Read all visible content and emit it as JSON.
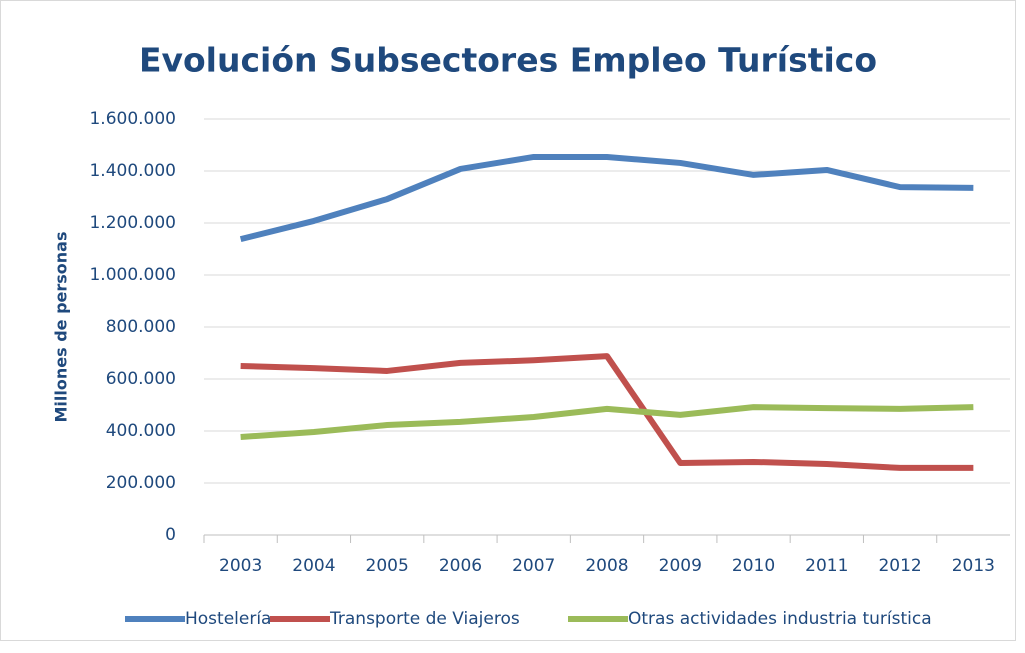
{
  "chart_data": {
    "type": "line",
    "title": "Evolución Subsectores Empleo Turístico",
    "y_label": "Millones de personas",
    "categories": [
      "2003",
      "2004",
      "2005",
      "2006",
      "2007",
      "2008",
      "2009",
      "2010",
      "2011",
      "2012",
      "2013"
    ],
    "series": [
      {
        "name": "Hostelería",
        "color": "#4f81bd",
        "values": [
          1138000,
          1208000,
          1292000,
          1408000,
          1454000,
          1454000,
          1431000,
          1385000,
          1404000,
          1338000,
          1335000
        ]
      },
      {
        "name": "Transporte de Viajeros",
        "color": "#c0504d",
        "values": [
          650000,
          642000,
          631000,
          662000,
          672000,
          688000,
          277000,
          281000,
          273000,
          258000,
          258000
        ]
      },
      {
        "name": "Otras actividades industria turística",
        "color": "#9bbb59",
        "values": [
          377000,
          396000,
          423000,
          435000,
          454000,
          485000,
          462000,
          492000,
          488000,
          485000,
          492000
        ]
      }
    ],
    "ylim": [
      0,
      1600000
    ],
    "yticks": [
      0,
      {
        "value": 200000,
        "label": "200.000"
      },
      {
        "value": 400000,
        "label": "400.000"
      },
      {
        "value": 600000,
        "label": "600.000"
      },
      {
        "value": 800000,
        "label": "800.000"
      },
      {
        "value": 1000000,
        "label": "1.000.000"
      },
      {
        "value": 1200000,
        "label": "1.200.000"
      },
      {
        "value": 1400000,
        "label": "1.400.000"
      },
      {
        "value": 1600000,
        "label": "1.600.000"
      }
    ],
    "grid": true,
    "legend": "bottom"
  }
}
